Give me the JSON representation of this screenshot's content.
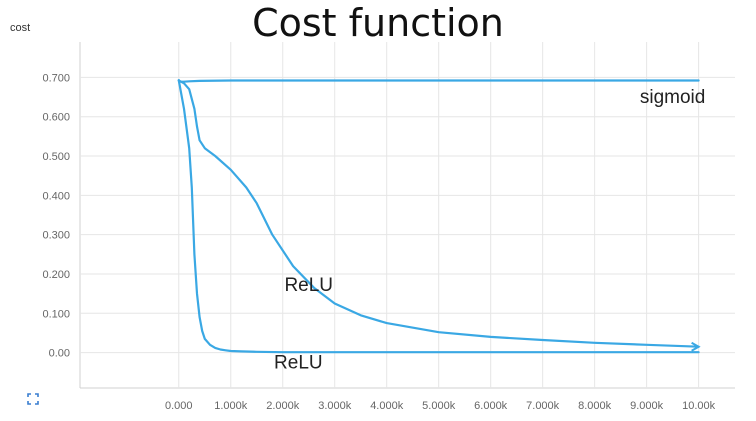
{
  "title": "Cost function",
  "corner_label": "cost",
  "colors": {
    "series": "#3aa8e4",
    "grid": "#e6e6e6",
    "axis": "#d0d0d0",
    "tick_text": "#666666",
    "label_text": "#222222"
  },
  "toolbar": {
    "expand_icon": "expand-icon"
  },
  "chart_data": {
    "type": "line",
    "title": "Cost function",
    "ylabel": "cost",
    "xlim": [
      -1900,
      10700
    ],
    "ylim": [
      -0.09,
      0.79
    ],
    "grid": true,
    "xticks": [
      0,
      1000,
      2000,
      3000,
      4000,
      5000,
      6000,
      7000,
      8000,
      9000,
      10000
    ],
    "xtick_labels": [
      "0.000",
      "1.000k",
      "2.000k",
      "3.000k",
      "4.000k",
      "5.000k",
      "6.000k",
      "7.000k",
      "8.000k",
      "9.000k",
      "10.00k"
    ],
    "yticks": [
      0,
      0.1,
      0.2,
      0.3,
      0.4,
      0.5,
      0.6,
      0.7
    ],
    "ytick_labels": [
      "0.00",
      "0.100",
      "0.200",
      "0.300",
      "0.400",
      "0.500",
      "0.600",
      "0.700"
    ],
    "series": [
      {
        "name": "sigmoid",
        "x": [
          0,
          10,
          50,
          100,
          200,
          400,
          1000,
          3000,
          6000,
          10000
        ],
        "y": [
          0.693,
          0.69,
          0.689,
          0.689,
          0.69,
          0.691,
          0.692,
          0.692,
          0.692,
          0.692
        ]
      },
      {
        "name": "ReLU",
        "x": [
          0,
          100,
          200,
          250,
          300,
          350,
          400,
          450,
          500,
          600,
          700,
          800,
          900,
          1000,
          1200,
          1500,
          2000,
          3000,
          4000,
          6000,
          10000
        ],
        "y": [
          0.692,
          0.62,
          0.52,
          0.42,
          0.25,
          0.15,
          0.09,
          0.055,
          0.035,
          0.02,
          0.012,
          0.008,
          0.006,
          0.004,
          0.003,
          0.002,
          0.001,
          0.001,
          0.001,
          0.001,
          0.001
        ]
      },
      {
        "name": "ReLU",
        "x": [
          0,
          100,
          200,
          300,
          350,
          400,
          500,
          700,
          1000,
          1300,
          1500,
          1800,
          2200,
          2600,
          3000,
          3500,
          4000,
          5000,
          6000,
          7000,
          8000,
          9000,
          10000
        ],
        "y": [
          0.692,
          0.685,
          0.67,
          0.62,
          0.575,
          0.54,
          0.52,
          0.5,
          0.465,
          0.42,
          0.38,
          0.3,
          0.22,
          0.165,
          0.125,
          0.095,
          0.075,
          0.052,
          0.04,
          0.032,
          0.025,
          0.02,
          0.015
        ]
      }
    ],
    "annotations": [
      {
        "text": "sigmoid",
        "x": 9500,
        "y": 0.635
      },
      {
        "text": "ReLU",
        "x": 2500,
        "y": 0.157
      },
      {
        "text": "ReLU",
        "x": 2300,
        "y": -0.04
      }
    ]
  }
}
